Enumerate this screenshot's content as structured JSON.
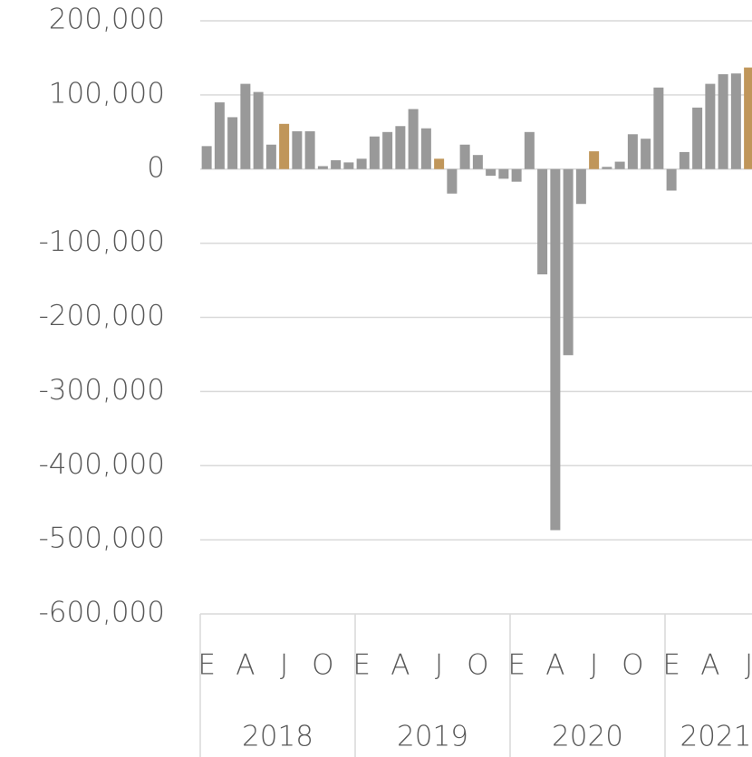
{
  "chart_data": {
    "type": "bar",
    "categories": [
      "E",
      null,
      null,
      "A",
      null,
      null,
      "J",
      null,
      null,
      "O",
      null,
      null,
      "E",
      null,
      null,
      "A",
      null,
      null,
      "J",
      null,
      null,
      "O",
      null,
      null,
      "E",
      null,
      null,
      "A",
      null,
      null,
      "J",
      null,
      null,
      "O",
      null,
      null,
      "E",
      null,
      null,
      "A",
      null,
      null,
      "J"
    ],
    "years": [
      "2018",
      "2019",
      "2020",
      "2021"
    ],
    "values": [
      31000,
      90000,
      70000,
      115000,
      104000,
      33000,
      61000,
      51000,
      51000,
      4000,
      12000,
      9000,
      14000,
      44000,
      50000,
      58000,
      81000,
      55000,
      14000,
      -33000,
      33000,
      19000,
      -9000,
      -13000,
      -17000,
      50000,
      -142000,
      -487000,
      -251000,
      -47000,
      24000,
      3000,
      10000,
      47000,
      41000,
      110000,
      -29000,
      23000,
      83000,
      115000,
      128000,
      129000,
      137000
    ],
    "colors": [
      "#999999",
      "#999999",
      "#999999",
      "#999999",
      "#999999",
      "#999999",
      "#c0965a",
      "#999999",
      "#999999",
      "#999999",
      "#999999",
      "#999999",
      "#999999",
      "#999999",
      "#999999",
      "#999999",
      "#999999",
      "#999999",
      "#c0965a",
      "#999999",
      "#999999",
      "#999999",
      "#999999",
      "#999999",
      "#999999",
      "#999999",
      "#999999",
      "#999999",
      "#999999",
      "#999999",
      "#c0965a",
      "#999999",
      "#999999",
      "#999999",
      "#999999",
      "#999999",
      "#999999",
      "#999999",
      "#999999",
      "#999999",
      "#999999",
      "#999999",
      "#c0965a"
    ],
    "ylim": [
      -600000,
      200000
    ],
    "yticks": [
      {
        "value": -600000,
        "label": "-600,000"
      },
      {
        "value": -500000,
        "label": "-500,000"
      },
      {
        "value": -400000,
        "label": "-400,000"
      },
      {
        "value": -300000,
        "label": "-300,000"
      },
      {
        "value": -200000,
        "label": "-200,000"
      },
      {
        "value": -100000,
        "label": "-100,000"
      },
      0,
      {
        "value": 100000,
        "label": "100,000"
      },
      {
        "value": 200000,
        "label": "200,000"
      }
    ],
    "grid": true
  }
}
